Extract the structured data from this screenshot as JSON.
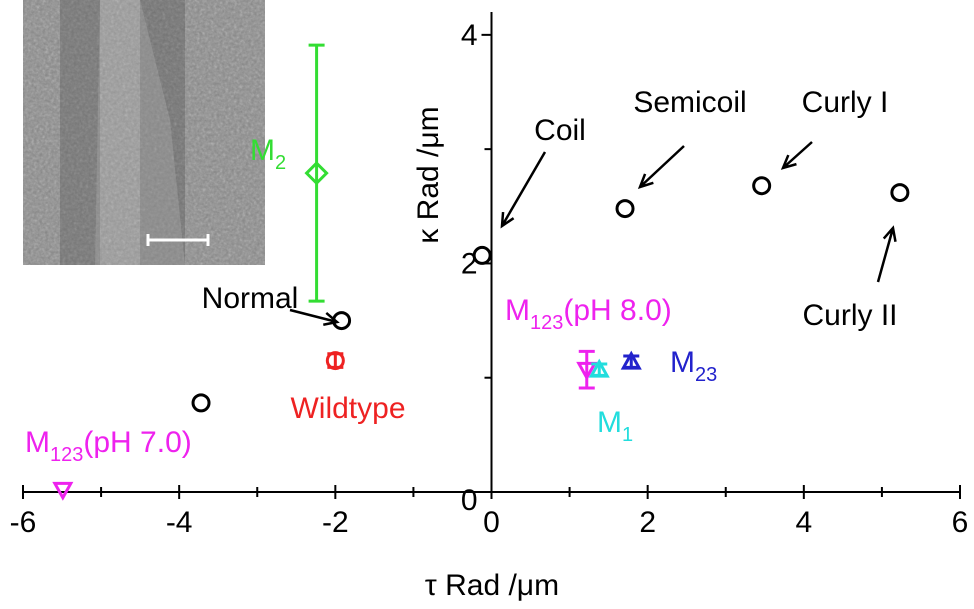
{
  "chart_data": {
    "type": "scatter",
    "xlabel": "τ Rad /μm",
    "ylabel": "κ Rad /μm",
    "xlim": [
      -6,
      6
    ],
    "ylim": [
      0,
      4.2
    ],
    "xticks": [
      -6,
      -4,
      -2,
      0,
      2,
      4,
      6
    ],
    "yticks": [
      0,
      2,
      4
    ],
    "xminorticks": [
      -5,
      -3,
      -1,
      1,
      3,
      5
    ],
    "yminorticks": [
      1,
      3
    ],
    "series": [
      {
        "color": "#000000",
        "marker": "circle",
        "x": [
          -0.12,
          1.71,
          3.46,
          5.23,
          -1.92,
          -3.72
        ],
        "y": [
          2.07,
          2.48,
          2.68,
          2.62,
          1.5,
          0.78
        ],
        "labels": [
          "Coil",
          "Semicoil",
          "Curly I",
          "Curly II",
          "Normal",
          null
        ]
      },
      {
        "label": [
          "M",
          "2"
        ],
        "color": "#33dd33",
        "marker": "diamond",
        "x": [
          -2.24
        ],
        "y": [
          2.79
        ],
        "error": [
          1.12
        ]
      },
      {
        "label": [
          "Wildtype"
        ],
        "color": "#ee2222",
        "marker": "circle",
        "x": [
          -2.0
        ],
        "y": [
          1.15
        ],
        "error": [
          0.06
        ]
      },
      {
        "label": [
          "M",
          "123",
          "(pH 8.0)"
        ],
        "color": "#ee22ee",
        "marker": "triangle-down",
        "x": [
          1.22
        ],
        "y": [
          1.07
        ],
        "error": [
          0.16
        ]
      },
      {
        "label": [
          "M",
          "1"
        ],
        "color": "#22dddd",
        "marker": "triangle-up",
        "x": [
          1.38
        ],
        "y": [
          1.07
        ],
        "error": [
          0.05
        ]
      },
      {
        "label": [
          "M",
          "23"
        ],
        "color": "#2222cc",
        "marker": "triangle-up",
        "x": [
          1.79
        ],
        "y": [
          1.14
        ],
        "error": [
          0.05
        ]
      },
      {
        "label": [
          "M",
          "123",
          "(pH 7.0)"
        ],
        "color": "#ee22ee",
        "marker": "triangle-down",
        "x": [
          -5.49
        ],
        "y": [
          0.02
        ]
      }
    ]
  }
}
